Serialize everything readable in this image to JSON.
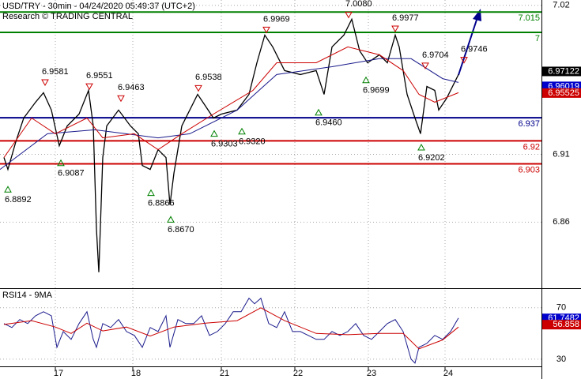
{
  "header": {
    "title": "USD/TRY - 30min - 04/24/2020 05:49:37 (UTC+2)",
    "subtitle": "Research © TRADING CENTRAL"
  },
  "chart_data": [
    {
      "type": "line",
      "xlim": [
        0,
        137
      ],
      "ylim": [
        6.813,
        7.021
      ],
      "yticks": [
        7.02,
        6.91,
        6.86
      ],
      "series": [
        {
          "color": "#000000",
          "x": [
            1,
            2,
            4,
            6,
            9,
            11,
            13,
            15,
            17,
            20,
            22.4,
            23.6,
            24.4,
            25,
            26,
            27,
            30,
            33,
            35,
            36,
            38,
            40,
            42,
            43,
            44,
            46,
            50,
            52,
            54,
            56,
            60,
            63,
            65,
            67,
            69,
            72,
            76,
            80,
            82,
            84,
            87,
            89,
            91,
            93,
            96,
            98,
            100,
            101,
            103,
            105,
            106.4,
            108,
            110,
            111,
            113,
            115,
            116
          ],
          "values": [
            6.9077,
            6.8989,
            6.9193,
            6.9368,
            6.9485,
            6.9555,
            6.9427,
            6.9164,
            6.931,
            6.9397,
            6.9572,
            6.931,
            6.8552,
            6.8231,
            6.9077,
            6.931,
            6.9427,
            6.931,
            6.9252,
            6.9018,
            6.8989,
            6.9135,
            6.9077,
            6.8727,
            6.896,
            6.931,
            6.9543,
            6.9456,
            6.9368,
            6.9397,
            6.9427,
            6.9543,
            6.9776,
            6.998,
            6.9893,
            6.9718,
            6.9689,
            6.9718,
            6.9543,
            6.9893,
            6.998,
            7.0097,
            6.9864,
            6.9776,
            6.9835,
            6.9776,
            6.998,
            6.9893,
            6.9543,
            6.9368,
            6.9252,
            6.9601,
            6.9572,
            6.9427,
            6.9514,
            6.9631,
            6.9689
          ]
        },
        {
          "color": "#1a1a8c",
          "x": [
            0,
            12,
            24,
            40,
            48,
            60,
            70,
            84,
            96,
            104,
            112,
            116
          ],
          "values": [
            6.8989,
            6.9252,
            6.9281,
            6.9222,
            6.9252,
            6.9427,
            6.9689,
            6.9747,
            6.9806,
            6.9806,
            6.9659,
            6.9631
          ]
        },
        {
          "color": "#cc0000",
          "x": [
            1,
            8,
            14,
            22,
            26,
            34,
            40,
            46,
            54,
            64,
            70,
            80,
            88,
            96,
            102,
            106,
            110,
            116
          ],
          "values": [
            6.9077,
            6.9368,
            6.9252,
            6.9368,
            6.9222,
            6.9252,
            6.9135,
            6.9252,
            6.9397,
            6.9572,
            6.9776,
            6.9776,
            6.9893,
            6.9835,
            6.9718,
            6.9543,
            6.9485,
            6.9555
          ]
        }
      ],
      "levels": [
        {
          "value": 7.015,
          "color": "#008000"
        },
        {
          "value": 7,
          "color": "#008000"
        },
        {
          "value": 6.937,
          "color": "#00008b"
        },
        {
          "value": 6.92,
          "color": "#cc0000"
        },
        {
          "value": 6.903,
          "color": "#cc0000"
        }
      ],
      "highs": {
        "color": "#cc0000",
        "x": [
          11.4,
          22.6,
          30.6,
          50.2,
          67.4,
          88.2,
          100,
          107.6,
          117.4
        ],
        "values": [
          6.9581,
          6.9551,
          6.9463,
          6.9538,
          6.9969,
          7.008,
          6.9977,
          6.9704,
          6.9746
        ],
        "value_labels": [
          "6.9581",
          "6.9551",
          "6.9463",
          "6.9538",
          "6.9969",
          "7.0080",
          "6.9977",
          "6.9704",
          "6.9746"
        ]
      },
      "lows": {
        "color": "#008000",
        "x": [
          2,
          15.4,
          38.2,
          43.2,
          54.2,
          61.2,
          80.6,
          92.6,
          106.6
        ],
        "values": [
          6.8892,
          6.9087,
          6.8866,
          6.867,
          6.9303,
          6.932,
          6.946,
          6.9699,
          6.9202
        ],
        "value_labels": [
          "6.8892",
          "6.9087",
          "6.8866",
          "6.8670",
          "6.9303",
          "6.9320",
          "6.9460",
          "6.9699",
          "6.9202"
        ]
      },
      "last_values": [
        {
          "value": 6.97122,
          "color": "#000000"
        },
        {
          "value": 6.96019,
          "color": "#0000cc"
        },
        {
          "value": 6.95525,
          "color": "#cc0000"
        }
      ]
    },
    {
      "type": "line",
      "title": "RSI14 - 9MA",
      "xlim": [
        0,
        137
      ],
      "ylim": [
        25,
        84
      ],
      "yticks": [
        70,
        30
      ],
      "xticks": [
        {
          "value": 14,
          "label": "17"
        },
        {
          "value": 33.6,
          "label": "18"
        },
        {
          "value": 56,
          "label": "21"
        },
        {
          "value": 74.6,
          "label": "22"
        },
        {
          "value": 93.2,
          "label": "23"
        },
        {
          "value": 112.6,
          "label": "24"
        }
      ],
      "series": [
        {
          "color": "#1a1a8c",
          "x": [
            1,
            3,
            5,
            7,
            9,
            11,
            13,
            14.4,
            16,
            18,
            20,
            22,
            23.6,
            24.4,
            26,
            28,
            30,
            32,
            34,
            36,
            38,
            40,
            42,
            43,
            45,
            47,
            49,
            51,
            53,
            55,
            57,
            59,
            61,
            63,
            64.4,
            66,
            68,
            70,
            72,
            74,
            76,
            78,
            80,
            82,
            84,
            86,
            88,
            90,
            92,
            94,
            96,
            98,
            100,
            102,
            104,
            105,
            106,
            108,
            110,
            112,
            114,
            116
          ],
          "values": [
            57.7,
            54.6,
            60.8,
            57.7,
            63.8,
            66.9,
            63.8,
            39.2,
            51.5,
            45.4,
            57.7,
            66.9,
            45.4,
            39.2,
            57.7,
            54.6,
            60.8,
            51.5,
            48.5,
            39.2,
            54.6,
            51.5,
            63.8,
            39.2,
            60.8,
            57.7,
            57.7,
            63.8,
            48.5,
            51.5,
            57.7,
            66.9,
            66.9,
            77.4,
            73.1,
            77.4,
            57.7,
            54.6,
            66.9,
            51.5,
            51.5,
            48.5,
            45.4,
            45.4,
            51.5,
            48.5,
            51.5,
            57.7,
            48.5,
            45.4,
            51.5,
            57.7,
            60.8,
            51.5,
            30,
            26.9,
            39.2,
            42.3,
            48.5,
            45.4,
            51.5,
            62
          ]
        },
        {
          "color": "#cc0000",
          "x": [
            1,
            8,
            14,
            18,
            22,
            26,
            32,
            38,
            44,
            52,
            60,
            66,
            72,
            80,
            88,
            96,
            102,
            106,
            112,
            116
          ],
          "values": [
            57,
            60,
            55,
            50,
            58,
            52,
            55,
            48,
            55,
            58,
            60,
            70,
            60,
            50,
            49,
            50,
            50,
            38,
            45,
            55
          ]
        }
      ],
      "last_values": [
        {
          "value": 61.7482,
          "color": "#0000cc"
        },
        {
          "value": 56.858,
          "color": "#cc0000"
        }
      ]
    }
  ]
}
